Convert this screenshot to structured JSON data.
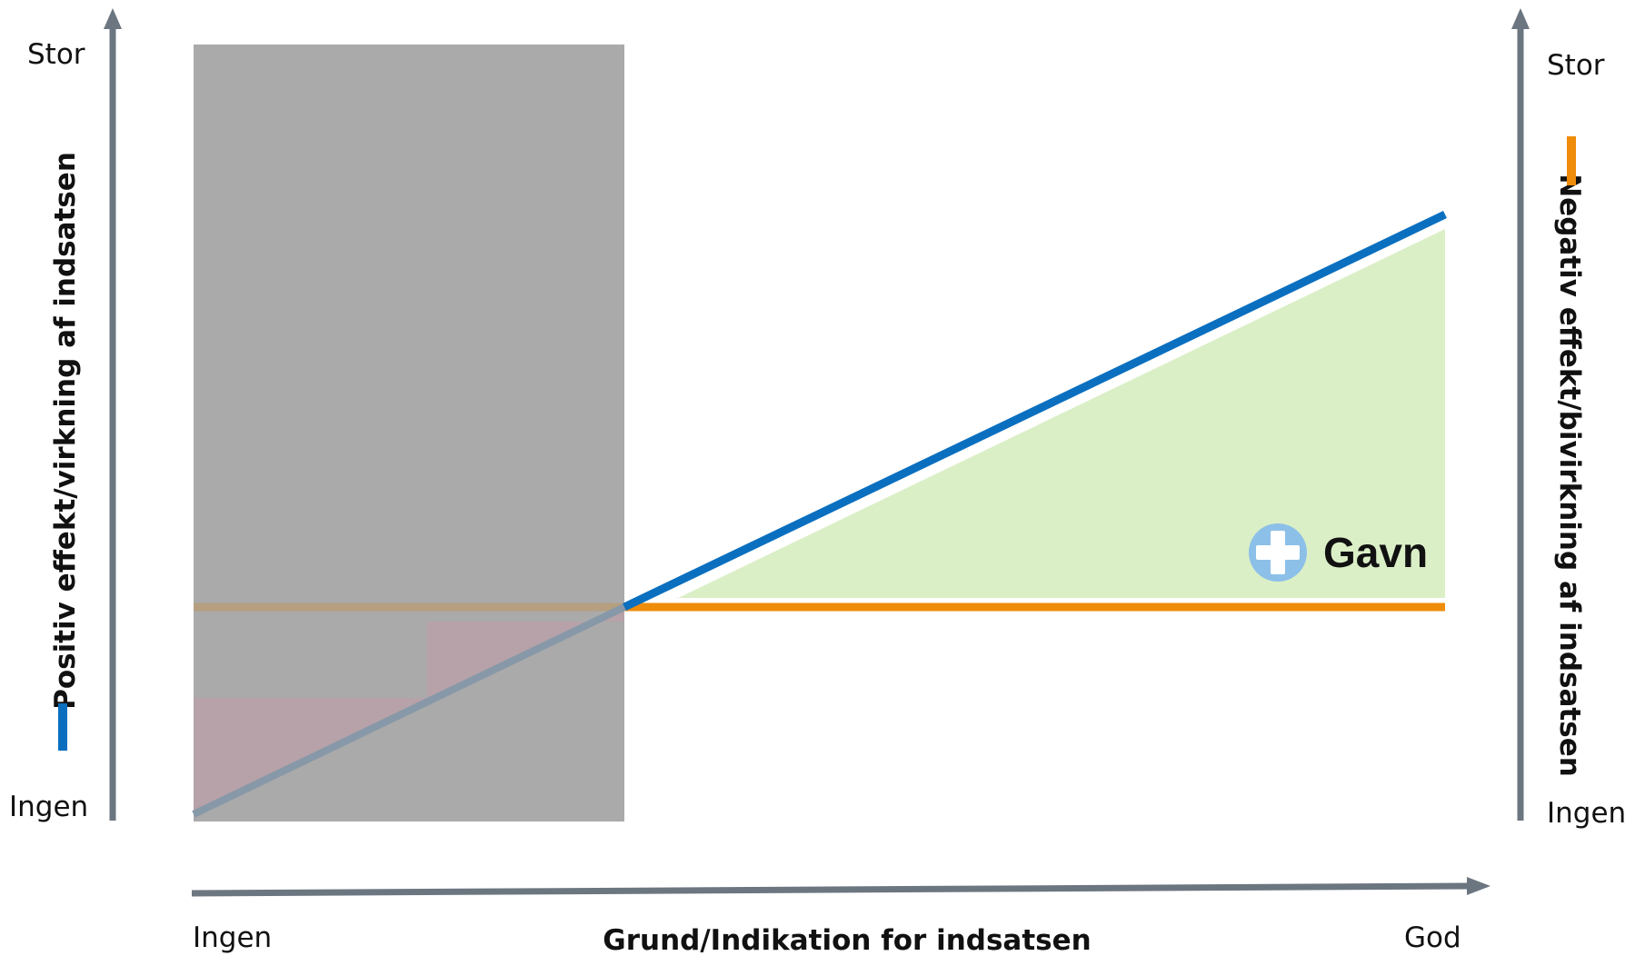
{
  "colors": {
    "axis": "#6c7680",
    "positive_line": "#0a6fbf",
    "negative_line": "#ef8c0a",
    "benefit_fill": "#dbefc7",
    "overlay_gray": "#aaaaaa",
    "harm_fill": "#b6a2a8",
    "plus_badge": "#8cc0e8"
  },
  "labels": {
    "left_top": "Stor",
    "left_bottom": "Ingen",
    "right_top": "Stor",
    "right_bottom": "Ingen",
    "x_start": "Ingen",
    "x_end": "God",
    "x_axis_title": "Grund/Indikation for indsatsen",
    "left_axis_title": "Positiv effekt/virkning af indsatsen",
    "right_axis_title": "Negativ effekt/bivirkning af indsatsen",
    "benefit_label": "Gavn"
  },
  "icons": {
    "benefit": "plus-circle-icon"
  }
}
